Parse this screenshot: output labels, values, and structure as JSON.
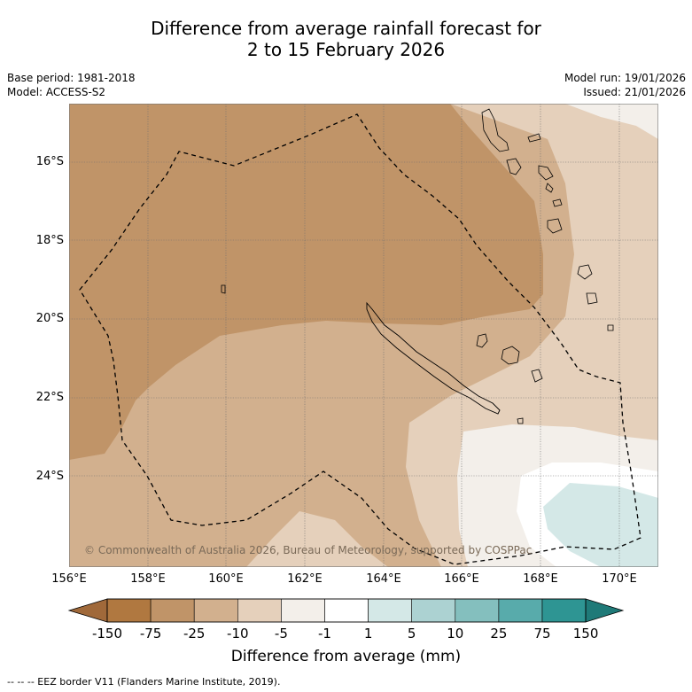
{
  "title": {
    "line1": "Difference from average rainfall forecast for",
    "line2": "2 to 15 February 2026"
  },
  "meta": {
    "base_period": "Base period: 1981-2018",
    "model": "Model: ACCESS-S2",
    "model_run": "Model run: 19/01/2026",
    "issued": "Issued: 21/01/2026"
  },
  "map": {
    "lon_labels": [
      "156°E",
      "158°E",
      "160°E",
      "162°E",
      "164°E",
      "166°E",
      "168°E",
      "170°E"
    ],
    "lat_labels": [
      "16°S",
      "18°S",
      "20°S",
      "22°S",
      "24°S"
    ],
    "copyright": "© Commonwealth of Australia 2026, Bureau of Meteorology, supported by COSPPac"
  },
  "colorbar": {
    "ticks": [
      "-150",
      "-75",
      "-25",
      "-10",
      "-5",
      "-1",
      "1",
      "5",
      "10",
      "25",
      "75",
      "150"
    ],
    "colors": [
      "#a0693a",
      "#b07840",
      "#c09468",
      "#d2b08e",
      "#e5d0bb",
      "#f3efea",
      "#ffffff",
      "#d4e8e7",
      "#acd2d2",
      "#84bfbe",
      "#58abab",
      "#2e9593",
      "#1f7a78"
    ],
    "label": "Difference from average (mm)"
  },
  "legend_note": "--  --  -- EEZ border V11 (Flanders Marine Institute, 2019)."
}
